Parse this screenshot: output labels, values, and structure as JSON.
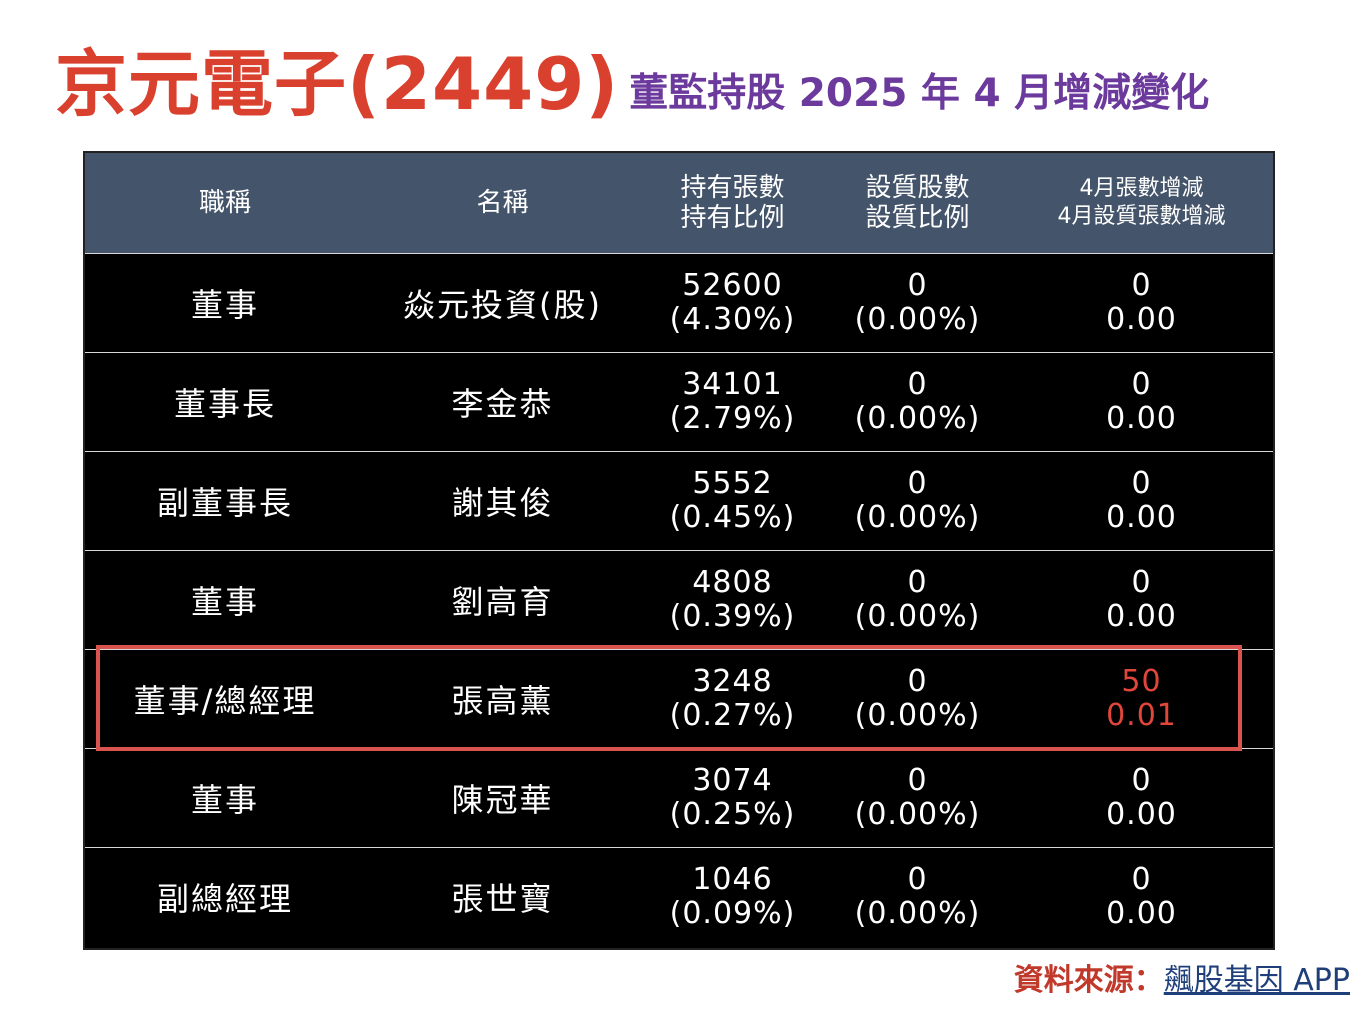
{
  "title": {
    "main": "京元電子(2449)",
    "sub": "董監持股 2025 年 4 月增減變化"
  },
  "table": {
    "headers": [
      [
        "職稱"
      ],
      [
        "名稱"
      ],
      [
        "持有張數",
        "持有比例"
      ],
      [
        "設質股數",
        "設質比例"
      ],
      [
        "4月張數增減",
        "4月設質張數增減"
      ]
    ],
    "rows": [
      {
        "title": "董事",
        "name": "焱元投資(股)",
        "shares": "52600",
        "ratio": "(4.30%)",
        "pledged": "0",
        "pledged_ratio": "(0.00%)",
        "change": "0",
        "pledge_change": "0.00",
        "highlight": false
      },
      {
        "title": "董事長",
        "name": "李金恭",
        "shares": "34101",
        "ratio": "(2.79%)",
        "pledged": "0",
        "pledged_ratio": "(0.00%)",
        "change": "0",
        "pledge_change": "0.00",
        "highlight": false
      },
      {
        "title": "副董事長",
        "name": "謝其俊",
        "shares": "5552",
        "ratio": "(0.45%)",
        "pledged": "0",
        "pledged_ratio": "(0.00%)",
        "change": "0",
        "pledge_change": "0.00",
        "highlight": false
      },
      {
        "title": "董事",
        "name": "劉高育",
        "shares": "4808",
        "ratio": "(0.39%)",
        "pledged": "0",
        "pledged_ratio": "(0.00%)",
        "change": "0",
        "pledge_change": "0.00",
        "highlight": false
      },
      {
        "title": "董事/總經理",
        "name": "張高薰",
        "shares": "3248",
        "ratio": "(0.27%)",
        "pledged": "0",
        "pledged_ratio": "(0.00%)",
        "change": "50",
        "pledge_change": "0.01",
        "highlight": true
      },
      {
        "title": "董事",
        "name": "陳冠華",
        "shares": "3074",
        "ratio": "(0.25%)",
        "pledged": "0",
        "pledged_ratio": "(0.00%)",
        "change": "0",
        "pledge_change": "0.00",
        "highlight": false
      },
      {
        "title": "副總經理",
        "name": "張世寶",
        "shares": "1046",
        "ratio": "(0.09%)",
        "pledged": "0",
        "pledged_ratio": "(0.00%)",
        "change": "0",
        "pledge_change": "0.00",
        "highlight": false
      }
    ]
  },
  "source": {
    "label": "資料來源：",
    "link": "飆股基因 APP"
  },
  "colors": {
    "title": "#d9402e",
    "subtitle": "#6b3a9c",
    "header_bg": "#44546a",
    "highlight": "#d9534f",
    "increase": "#e0463a"
  }
}
